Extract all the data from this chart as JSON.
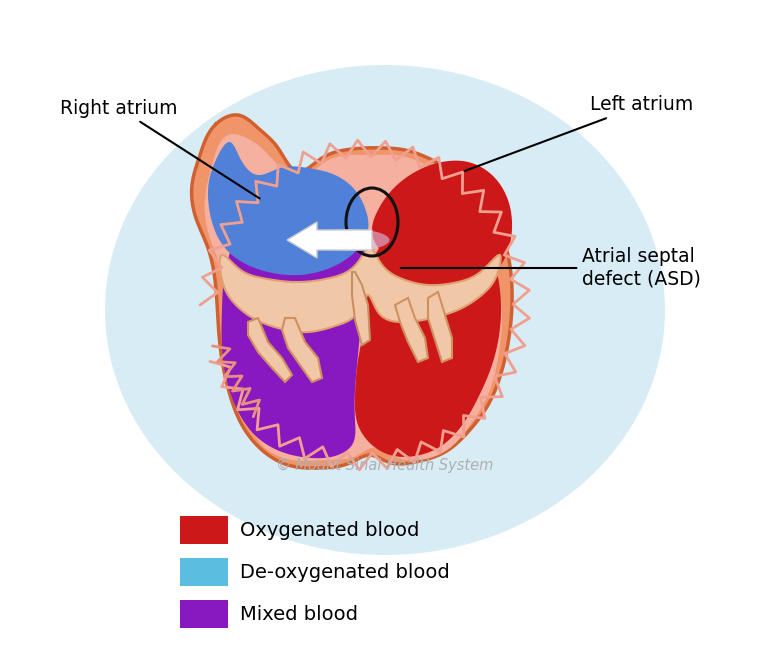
{
  "bg_color": "#ffffff",
  "glow_color": "#b8ddf0",
  "heart_outer_color": "#f0956a",
  "heart_outer_edge": "#d06030",
  "right_atrium_blue": "#5080d8",
  "left_atrium_red": "#cc1818",
  "mixed_purple": "#8818c0",
  "muscle_pink": "#f5b0a0",
  "septum_color": "#f0c8a8",
  "arrow_color": "#ffffff",
  "circle_color": "#111111",
  "label_right_atrium": "Right atrium",
  "label_left_atrium": "Left atrium",
  "label_asd": "Atrial septal\ndefect (ASD)",
  "label_copyright": "© Mount Sinai Health System",
  "legend_items": [
    {
      "color": "#cc1818",
      "label": "Oxygenated blood"
    },
    {
      "color": "#5bbde0",
      "label": "De-oxygenated blood"
    },
    {
      "color": "#8818c0",
      "label": "Mixed blood"
    }
  ]
}
